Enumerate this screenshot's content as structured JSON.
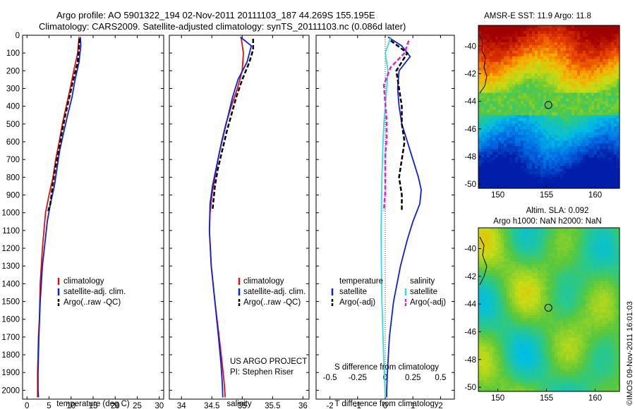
{
  "header": {
    "line1": "Argo profile: AO 5901322_194 02-Nov-2011 20111103_187 44.269S 155.195E",
    "line2": "Climatology: CARS2009. Satellite-adjusted climatology: synTS_20111103.nc (0.086d later)"
  },
  "side_label": "©IMOS 09-Nov-2011 16:01:03",
  "project": {
    "line1": "US ARGO PROJECT",
    "line2": "PI: Stephen Riser"
  },
  "colors": {
    "climatology": "#dd1111",
    "satellite": "#1122cc",
    "argo": "#000000",
    "sal_satellite": "#33dddd",
    "sal_argo": "#dd22cc",
    "frame": "#000000"
  },
  "chart_data": [
    {
      "type": "line",
      "name": "temperature-profile",
      "xlabel": "temperature (deg C)",
      "xlim": [
        -1,
        31
      ],
      "ylim": [
        2050,
        0
      ],
      "xticks": [
        0,
        5,
        10,
        15,
        20,
        25,
        30
      ],
      "yticks": [
        0,
        100,
        200,
        300,
        400,
        500,
        600,
        700,
        800,
        900,
        1000,
        1100,
        1200,
        1300,
        1400,
        1500,
        1600,
        1700,
        1800,
        1900,
        2000
      ],
      "legend": [
        "climatology",
        "satellite-adj. clim.",
        "Argo(..raw -QC)"
      ],
      "legend_position": "center",
      "series": [
        {
          "name": "climatology",
          "color": "#dd1111",
          "style": "solid",
          "x": [
            11.8,
            11.5,
            10.6,
            9.8,
            8.9,
            8.0,
            7.3,
            6.5,
            5.9,
            5.0,
            4.2,
            3.5,
            3.0,
            2.8,
            2.6,
            2.5,
            2.4,
            2.4
          ],
          "y": [
            10,
            100,
            200,
            300,
            400,
            500,
            600,
            700,
            800,
            900,
            1000,
            1200,
            1400,
            1600,
            1700,
            1800,
            1900,
            2040
          ]
        },
        {
          "name": "satellite-adj. clim.",
          "color": "#1122cc",
          "style": "solid",
          "x": [
            12.1,
            12.2,
            11.8,
            10.9,
            10.2,
            9.2,
            8.3,
            7.4,
            6.8,
            6.2,
            5.3,
            4.6,
            3.5,
            3.0,
            2.7,
            2.6,
            2.5,
            2.5,
            2.6
          ],
          "y": [
            10,
            60,
            150,
            250,
            350,
            450,
            550,
            650,
            750,
            850,
            950,
            1050,
            1300,
            1500,
            1700,
            1800,
            1900,
            2000,
            2040
          ]
        },
        {
          "name": "Argo(..raw -QC)",
          "color": "#000000",
          "style": "dash",
          "x": [
            11.9,
            11.8,
            11.5,
            10.5,
            9.6,
            8.7,
            7.9,
            7.2,
            6.4,
            5.8,
            5.3,
            4.8
          ],
          "y": [
            20,
            60,
            150,
            250,
            350,
            450,
            550,
            650,
            750,
            850,
            950,
            990
          ]
        }
      ]
    },
    {
      "type": "line",
      "name": "salinity-profile",
      "xlabel": "salinity",
      "xlim": [
        33.8,
        36.1
      ],
      "ylim": [
        2050,
        0
      ],
      "xticks": [
        34,
        34.5,
        35,
        35.5,
        36
      ],
      "legend": [
        "climatology",
        "satellite-adj. clim.",
        "Argo(..raw -QC)"
      ],
      "legend_position": "center",
      "series": [
        {
          "name": "climatology",
          "color": "#dd1111",
          "style": "solid",
          "x": [
            34.98,
            35.02,
            35.0,
            34.92,
            34.82,
            34.73,
            34.66,
            34.6,
            34.55,
            34.5,
            34.47,
            34.46,
            34.49,
            34.55,
            34.62,
            34.67,
            34.7,
            34.72
          ],
          "y": [
            10,
            100,
            200,
            300,
            400,
            500,
            600,
            700,
            800,
            900,
            1000,
            1100,
            1300,
            1500,
            1700,
            1850,
            1950,
            2040
          ]
        },
        {
          "name": "satellite-adj. clim.",
          "color": "#1122cc",
          "style": "solid",
          "x": [
            34.97,
            35.15,
            35.08,
            34.93,
            34.84,
            34.77,
            34.7,
            34.63,
            34.57,
            34.51,
            34.47,
            34.46,
            34.49,
            34.55,
            34.61,
            34.65,
            34.67,
            34.68
          ],
          "y": [
            10,
            60,
            150,
            250,
            350,
            450,
            550,
            650,
            750,
            850,
            950,
            1100,
            1300,
            1500,
            1700,
            1850,
            1950,
            2040
          ]
        },
        {
          "name": "Argo(..raw -QC)",
          "color": "#000000",
          "style": "dash",
          "x": [
            35.18,
            35.18,
            35.12,
            35.0,
            34.9,
            34.82,
            34.74,
            34.67,
            34.6,
            34.55,
            34.51
          ],
          "y": [
            20,
            80,
            150,
            250,
            350,
            450,
            550,
            650,
            750,
            850,
            990
          ]
        }
      ]
    },
    {
      "type": "line",
      "name": "difference-profile",
      "xlabel": "T difference from climatology",
      "x2label": "S difference from climatology",
      "xlim": [
        -2.5,
        2.5
      ],
      "ylim": [
        2050,
        0
      ],
      "xticks": [
        -2,
        -1,
        0,
        1,
        2
      ],
      "x2ticks": [
        "-0.5",
        "-0.25",
        "0",
        "0.25",
        "0.5"
      ],
      "legend_temperature": [
        "temperature",
        "satellite",
        "Argo(-adj)"
      ],
      "legend_salinity": [
        "salinity",
        "satellite",
        "Argo(-adj)"
      ],
      "series": [
        {
          "name": "temperature satellite",
          "color": "#1122cc",
          "style": "solid",
          "x": [
            0.1,
            0.6,
            0.9,
            0.5,
            0.45,
            0.5,
            0.6,
            0.8,
            1.0,
            1.2,
            1.3,
            1.25,
            1.0,
            0.8,
            0.55,
            0.3,
            0.15,
            0.08,
            0.05,
            0.05
          ],
          "y": [
            10,
            60,
            120,
            200,
            300,
            400,
            500,
            600,
            700,
            800,
            870,
            950,
            1050,
            1150,
            1300,
            1500,
            1700,
            1900,
            2000,
            2040
          ]
        },
        {
          "name": "temperature Argo(-adj)",
          "color": "#000000",
          "style": "dash",
          "x": [
            0.2,
            0.8,
            0.4,
            0.5,
            0.6,
            0.6,
            0.7,
            0.6,
            0.5,
            0.6,
            0.6
          ],
          "y": [
            30,
            100,
            200,
            300,
            400,
            500,
            600,
            700,
            800,
            900,
            990
          ]
        },
        {
          "name": "salinity satellite",
          "color": "#33dddd",
          "style": "solid",
          "x": [
            0.2,
            0.0,
            0.1,
            0.05,
            0.0,
            -0.05,
            -0.08,
            -0.1,
            -0.12,
            -0.13,
            -0.14,
            -0.15,
            -0.14,
            -0.12,
            -0.08,
            -0.05,
            -0.02,
            0.0
          ],
          "y": [
            10,
            100,
            200,
            300,
            400,
            500,
            600,
            700,
            800,
            900,
            1000,
            1100,
            1300,
            1500,
            1700,
            1850,
            1950,
            2040
          ]
        },
        {
          "name": "salinity Argo(-adj)",
          "color": "#dd22cc",
          "style": "dash",
          "x": [
            0.85,
            0.7,
            0.2,
            -0.05,
            0.0,
            0.05,
            0.05,
            0.0,
            0.0,
            0.0,
            -0.05
          ],
          "y": [
            30,
            100,
            180,
            280,
            380,
            480,
            580,
            680,
            780,
            880,
            990
          ]
        }
      ]
    },
    {
      "type": "heatmap",
      "name": "sst-map",
      "title": "AMSR-E SST: 11.9 Argo: 11.8",
      "xticks": [
        "150",
        "155",
        "160"
      ],
      "yticks": [
        "-40",
        "-42",
        "-44",
        "-46",
        "-48",
        "-50"
      ],
      "xlim": [
        148,
        162.5
      ],
      "ylim": [
        -50.3,
        -38.5
      ],
      "marker": {
        "lon": 155.195,
        "lat": -44.269
      }
    },
    {
      "type": "heatmap",
      "name": "sla-map",
      "title": "Altim. SLA: 0.092",
      "subtitle": "Argo h1000: NaN h2000: NaN",
      "xticks": [
        "150",
        "155",
        "160"
      ],
      "yticks": [
        "-40",
        "-42",
        "-44",
        "-46",
        "-48",
        "-50"
      ],
      "xlim": [
        148,
        162.5
      ],
      "ylim": [
        -50.3,
        -38.5
      ],
      "marker": {
        "lon": 155.195,
        "lat": -44.269
      }
    }
  ]
}
